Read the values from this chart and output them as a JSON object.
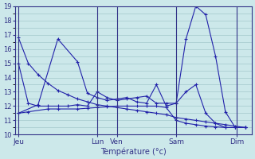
{
  "background_color": "#cce8ea",
  "grid_color": "#aacdd0",
  "line_color": "#2222aa",
  "xlabel": "Température (°c)",
  "ylim": [
    10,
    19
  ],
  "yticks": [
    10,
    11,
    12,
    13,
    14,
    15,
    16,
    17,
    18,
    19
  ],
  "xlim": [
    0,
    288
  ],
  "x_labels": [
    [
      "Jeu",
      4
    ],
    [
      "Lun",
      100
    ],
    [
      "Ven",
      124
    ],
    [
      "Sam",
      196
    ],
    [
      "Dim",
      270
    ]
  ],
  "x_vlines": [
    4,
    100,
    124,
    196,
    270
  ],
  "series": [
    {
      "x": [
        4,
        16,
        28,
        40,
        52,
        64,
        76,
        88,
        100,
        112,
        124,
        136,
        148,
        160,
        172,
        184,
        196,
        208,
        220,
        232,
        244,
        256,
        268,
        280
      ],
      "y": [
        16.8,
        15.0,
        14.2,
        13.6,
        13.1,
        12.8,
        12.5,
        12.3,
        12.1,
        12.0,
        11.9,
        11.8,
        11.7,
        11.6,
        11.5,
        11.4,
        11.2,
        11.1,
        11.0,
        10.9,
        10.8,
        10.7,
        10.6,
        10.5
      ]
    },
    {
      "x": [
        4,
        16,
        40,
        52,
        76,
        88,
        100,
        112,
        124,
        136,
        148,
        160,
        172,
        184,
        196,
        208,
        220,
        232,
        244,
        256,
        268,
        280
      ],
      "y": [
        11.5,
        11.6,
        11.8,
        11.8,
        11.8,
        11.85,
        11.9,
        11.95,
        12.0,
        12.0,
        12.0,
        12.0,
        12.0,
        11.9,
        11.0,
        10.8,
        10.7,
        10.6,
        10.55,
        10.5,
        10.5,
        10.5
      ]
    },
    {
      "x": [
        4,
        16,
        28,
        40,
        52,
        64,
        76,
        88,
        100,
        112,
        124,
        136,
        148,
        160,
        172,
        184,
        196,
        208,
        220,
        232,
        244,
        256,
        268,
        280
      ],
      "y": [
        15.0,
        12.2,
        12.0,
        12.0,
        12.0,
        12.0,
        12.1,
        12.0,
        13.0,
        12.6,
        12.4,
        12.5,
        12.6,
        12.7,
        12.2,
        12.2,
        12.2,
        16.7,
        19.0,
        18.4,
        15.5,
        11.6,
        10.5,
        10.5
      ]
    },
    {
      "x": [
        4,
        28,
        52,
        76,
        88,
        100,
        112,
        124,
        136,
        148,
        160,
        172,
        184,
        196,
        208,
        220,
        232,
        244,
        256,
        268,
        280
      ],
      "y": [
        11.5,
        12.1,
        16.7,
        15.1,
        12.9,
        12.6,
        12.4,
        12.5,
        12.6,
        12.3,
        12.2,
        13.5,
        12.0,
        12.2,
        13.0,
        13.5,
        11.5,
        10.8,
        10.5,
        10.5,
        10.5
      ]
    }
  ]
}
